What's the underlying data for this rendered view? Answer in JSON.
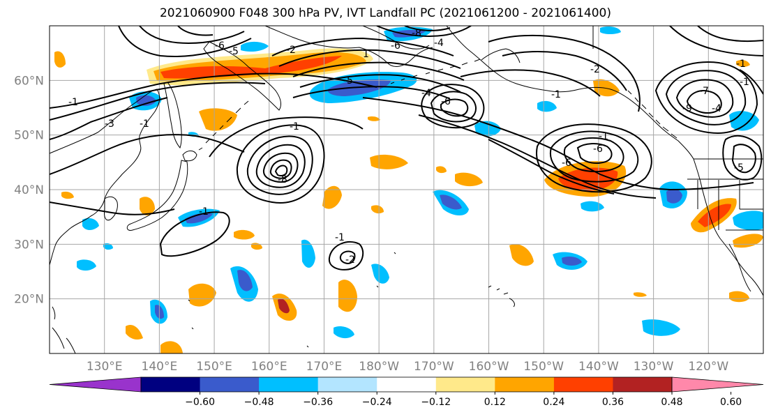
{
  "title": "2021060900 F048 300 hPa PV, IVT Landfall PC (2021061200 - 2021061400)",
  "map": {
    "lat_labels": [
      "60°N",
      "50°N",
      "40°N",
      "30°N",
      "20°N"
    ],
    "lon_labels": [
      "130°E",
      "140°E",
      "150°E",
      "160°E",
      "170°E",
      "180°W",
      "170°W",
      "160°W",
      "150°W",
      "140°W",
      "130°W",
      "120°W"
    ],
    "lon_range": [
      120,
      250
    ],
    "lat_range": [
      10,
      70
    ],
    "contour_labels": [
      "-1",
      "-3",
      "-1",
      "-1",
      "-6",
      "-5",
      "-2",
      "1",
      "-5",
      "-6",
      "-8",
      "-4",
      "-4",
      "-6",
      "-1",
      "-2",
      "-6",
      "-1",
      "-6",
      "-9",
      "-7",
      "-4",
      "-1",
      "-5",
      "-8",
      "-1",
      "-2",
      "-1",
      "-1"
    ],
    "colors": {
      "land_outline": "#000000",
      "grid": "#a6a6a6"
    }
  },
  "colorbar": {
    "tick_labels": [
      "−0.60",
      "−0.48",
      "−0.36",
      "−0.24",
      "−0.12",
      "0.12",
      "0.24",
      "0.36",
      "0.48",
      "0.60"
    ],
    "boundaries": [
      -0.6,
      -0.48,
      -0.36,
      -0.24,
      -0.12,
      0.12,
      0.24,
      0.36,
      0.48,
      0.6
    ],
    "colors": [
      "#9933cc",
      "#000080",
      "#3a5bcc",
      "#00bfff",
      "#b3e5ff",
      "#ffffff",
      "#ffe98a",
      "#ffa500",
      "#ff4000",
      "#b22222",
      "#ff88aa"
    ]
  }
}
